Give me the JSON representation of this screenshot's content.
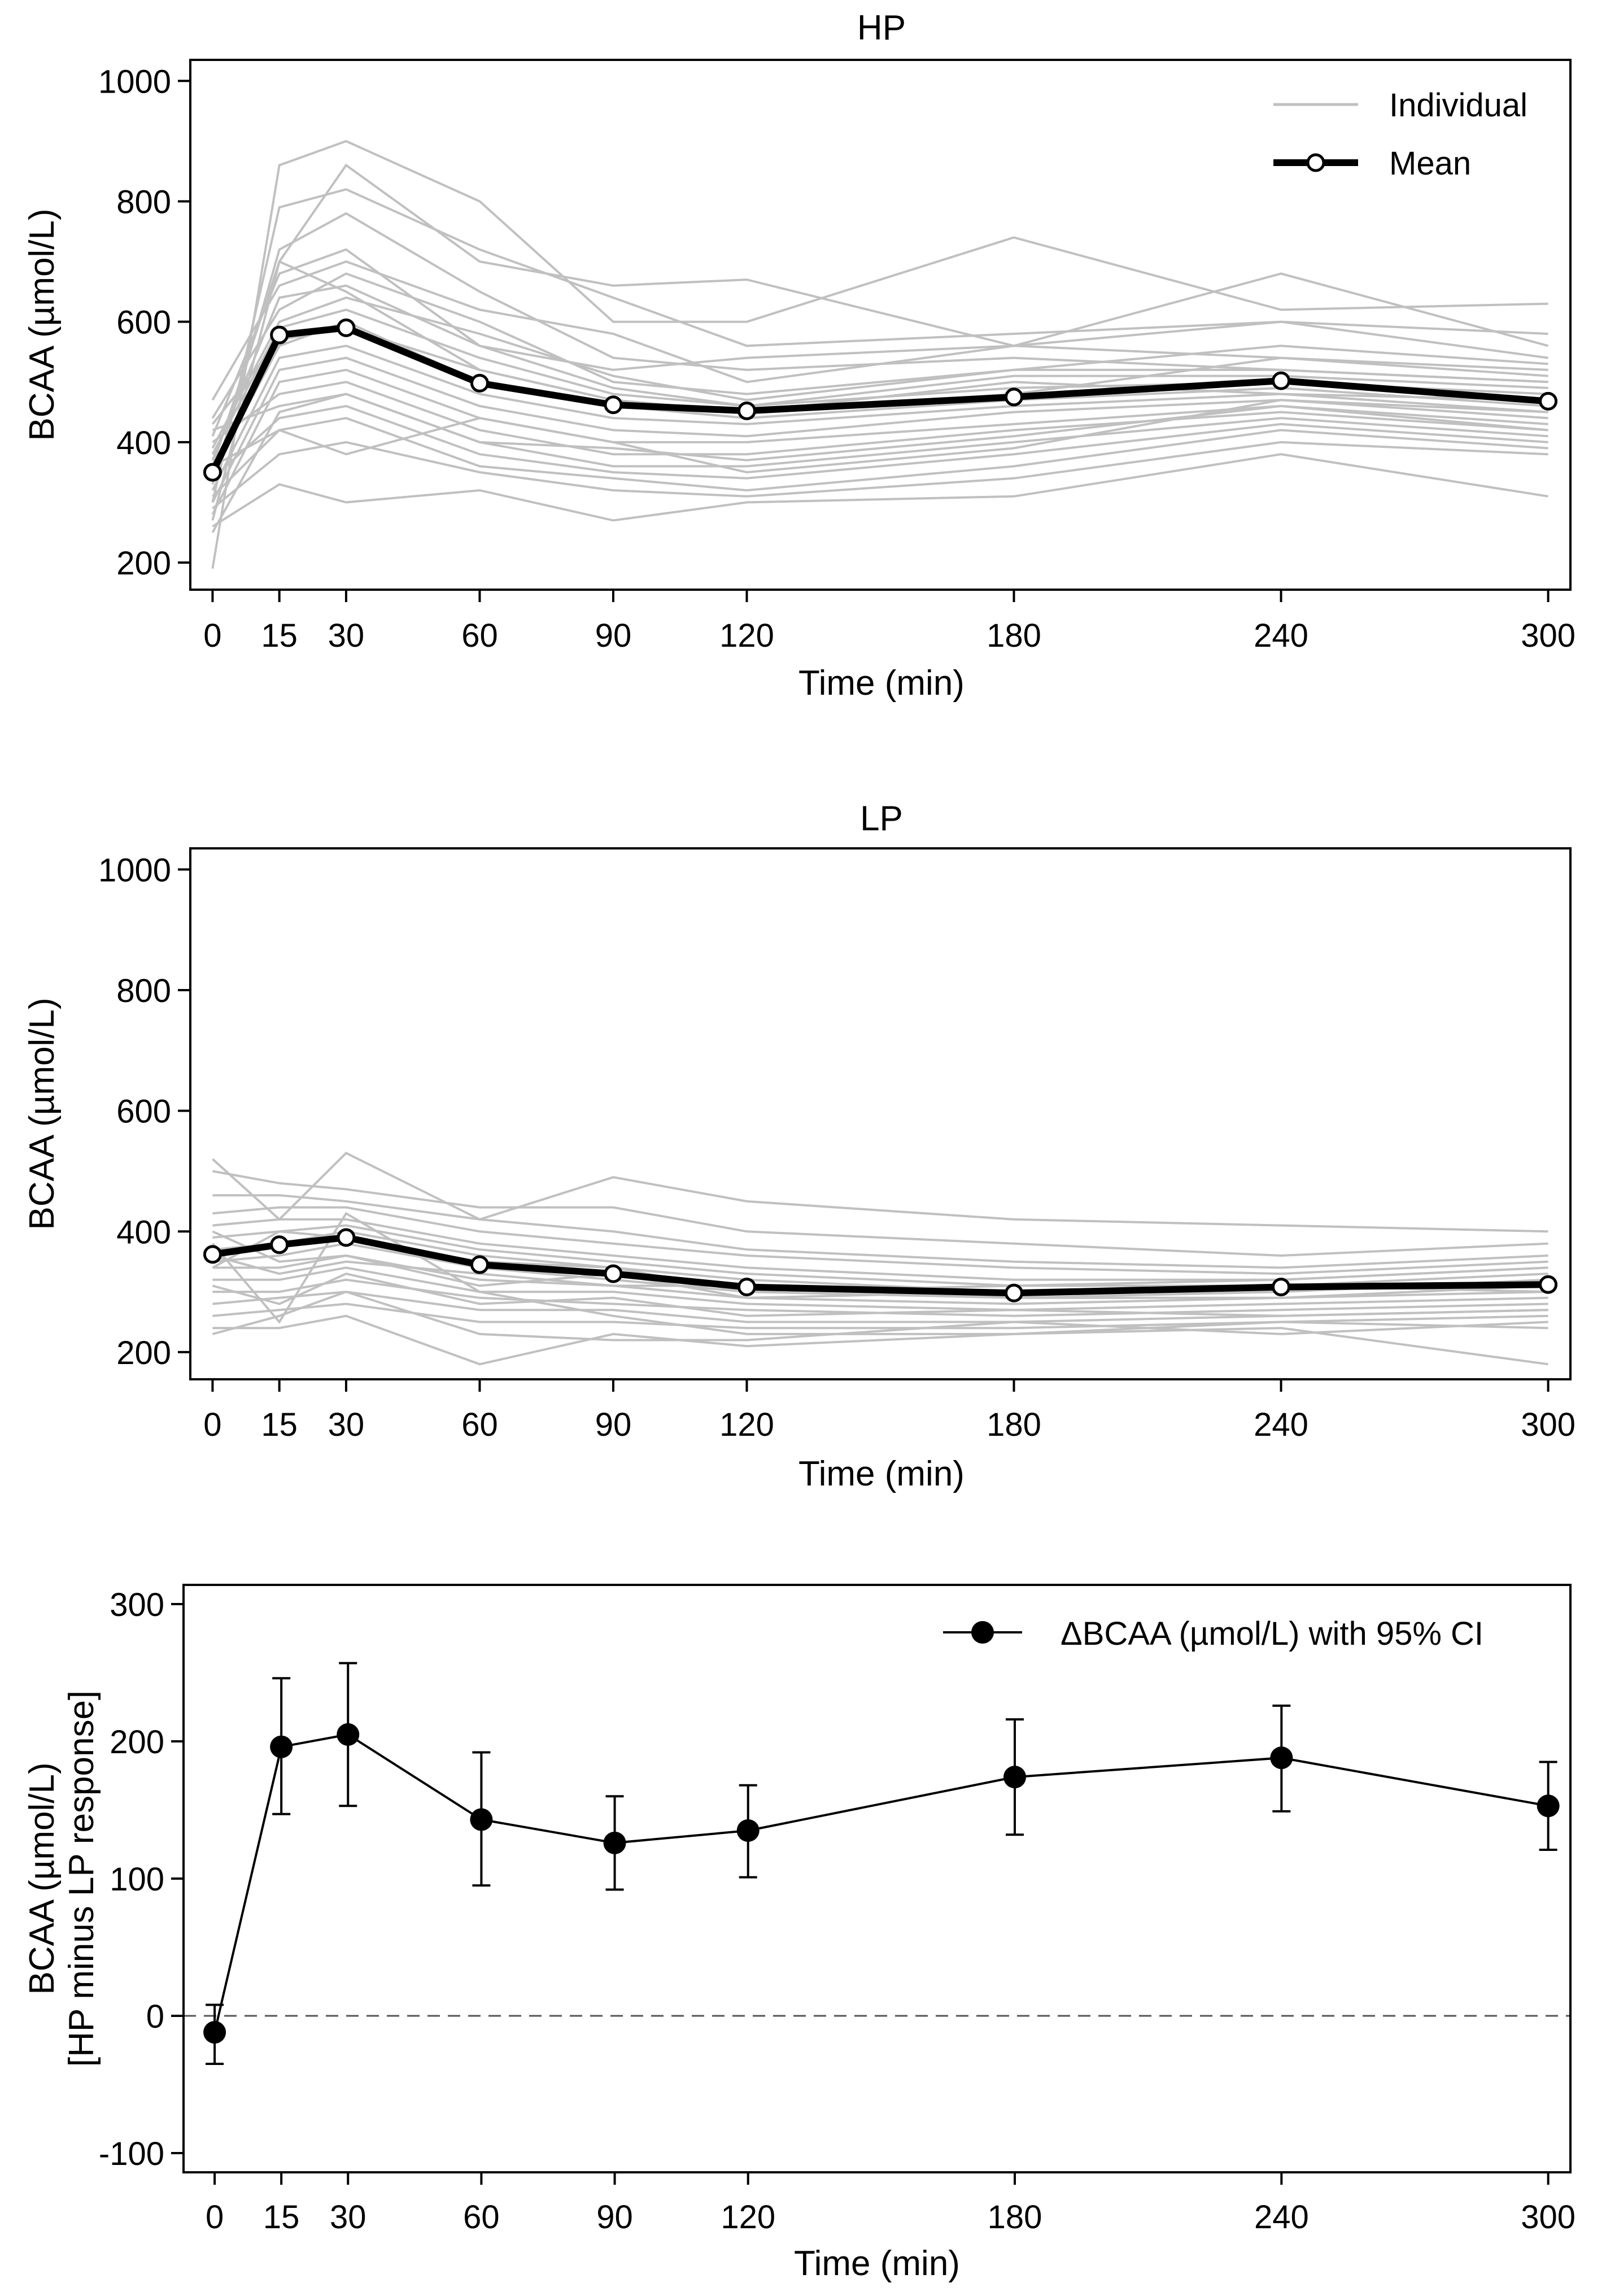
{
  "chart_data": [
    {
      "id": "hp",
      "type": "line",
      "title": "HP",
      "xlabel": "Time (min)",
      "ylabel": "BCAA (µmol/L)",
      "x": [
        0,
        15,
        30,
        60,
        90,
        120,
        180,
        240,
        300
      ],
      "x_ticks": [
        "0",
        "15",
        "30",
        "60",
        "90",
        "120",
        "180",
        "240",
        "300"
      ],
      "y_ticks": [
        "200",
        "400",
        "600",
        "800",
        "1000"
      ],
      "y_tick_values": [
        200,
        400,
        600,
        800,
        1000
      ],
      "xlim": [
        -5,
        305
      ],
      "ylim": [
        155,
        1035
      ],
      "legend": {
        "position": "top-right",
        "individual_label": "Individual",
        "mean_label": "Mean"
      },
      "colors": {
        "individual": "#c0c0c0",
        "mean": "#000000"
      },
      "mean": [
        350,
        578,
        590,
        498,
        462,
        452,
        475,
        502,
        468
      ],
      "individual": [
        [
          190,
          860,
          900,
          800,
          600,
          600,
          740,
          620,
          630
        ],
        [
          270,
          700,
          860,
          700,
          660,
          670,
          560,
          680,
          560
        ],
        [
          300,
          790,
          820,
          720,
          640,
          560,
          580,
          600,
          540
        ],
        [
          330,
          720,
          780,
          650,
          540,
          520,
          540,
          520,
          500
        ],
        [
          410,
          680,
          720,
          560,
          520,
          540,
          560,
          540,
          520
        ],
        [
          440,
          620,
          680,
          600,
          500,
          480,
          520,
          520,
          500
        ],
        [
          360,
          700,
          650,
          520,
          470,
          450,
          500,
          480,
          470
        ],
        [
          380,
          590,
          620,
          540,
          480,
          460,
          490,
          500,
          480
        ],
        [
          350,
          560,
          600,
          500,
          460,
          440,
          470,
          490,
          460
        ],
        [
          320,
          540,
          560,
          480,
          440,
          430,
          460,
          480,
          450
        ],
        [
          300,
          520,
          540,
          460,
          420,
          410,
          450,
          470,
          440
        ],
        [
          280,
          500,
          520,
          440,
          400,
          400,
          430,
          460,
          430
        ],
        [
          400,
          480,
          500,
          420,
          380,
          380,
          420,
          450,
          420
        ],
        [
          420,
          460,
          480,
          400,
          360,
          360,
          400,
          440,
          410
        ],
        [
          340,
          440,
          460,
          380,
          350,
          340,
          380,
          430,
          400
        ],
        [
          310,
          420,
          440,
          360,
          340,
          320,
          360,
          420,
          390
        ],
        [
          290,
          380,
          400,
          350,
          320,
          310,
          340,
          400,
          380
        ],
        [
          260,
          330,
          300,
          320,
          270,
          300,
          310,
          380,
          310
        ],
        [
          470,
          660,
          700,
          620,
          580,
          500,
          560,
          600,
          580
        ],
        [
          390,
          600,
          640,
          580,
          510,
          470,
          520,
          560,
          530
        ],
        [
          370,
          640,
          660,
          560,
          490,
          460,
          510,
          510,
          490
        ],
        [
          430,
          570,
          590,
          520,
          470,
          450,
          480,
          540,
          510
        ],
        [
          250,
          450,
          480,
          400,
          390,
          370,
          410,
          460,
          420
        ],
        [
          360,
          420,
          380,
          440,
          400,
          350,
          390,
          470,
          450
        ]
      ]
    },
    {
      "id": "lp",
      "type": "line",
      "title": "LP",
      "xlabel": "Time (min)",
      "ylabel": "BCAA (µmol/L)",
      "x": [
        0,
        15,
        30,
        60,
        90,
        120,
        180,
        240,
        300
      ],
      "x_ticks": [
        "0",
        "15",
        "30",
        "60",
        "90",
        "120",
        "180",
        "240",
        "300"
      ],
      "y_ticks": [
        "200",
        "400",
        "600",
        "800",
        "1000"
      ],
      "y_tick_values": [
        200,
        400,
        600,
        800,
        1000
      ],
      "xlim": [
        -5,
        305
      ],
      "ylim": [
        155,
        1035
      ],
      "colors": {
        "individual": "#c0c0c0",
        "mean": "#000000"
      },
      "mean": [
        362,
        378,
        390,
        345,
        330,
        308,
        298,
        308,
        312
      ],
      "individual": [
        [
          520,
          420,
          530,
          420,
          490,
          450,
          420,
          410,
          400
        ],
        [
          500,
          480,
          470,
          440,
          440,
          400,
          380,
          360,
          380
        ],
        [
          460,
          460,
          450,
          420,
          400,
          370,
          350,
          340,
          360
        ],
        [
          430,
          440,
          440,
          400,
          380,
          360,
          340,
          330,
          350
        ],
        [
          410,
          420,
          420,
          380,
          360,
          340,
          320,
          320,
          340
        ],
        [
          390,
          400,
          410,
          370,
          350,
          330,
          310,
          310,
          330
        ],
        [
          370,
          380,
          400,
          360,
          340,
          320,
          300,
          300,
          320
        ],
        [
          350,
          360,
          380,
          340,
          320,
          300,
          290,
          290,
          310
        ],
        [
          340,
          340,
          360,
          320,
          310,
          290,
          280,
          290,
          300
        ],
        [
          320,
          320,
          340,
          300,
          300,
          280,
          270,
          280,
          290
        ],
        [
          300,
          300,
          320,
          290,
          280,
          270,
          260,
          270,
          280
        ],
        [
          280,
          290,
          300,
          270,
          270,
          250,
          250,
          260,
          270
        ],
        [
          260,
          270,
          280,
          250,
          250,
          240,
          240,
          250,
          260
        ],
        [
          240,
          240,
          260,
          180,
          230,
          210,
          230,
          240,
          180
        ],
        [
          230,
          260,
          300,
          230,
          220,
          220,
          250,
          230,
          250
        ],
        [
          380,
          250,
          430,
          300,
          260,
          230,
          230,
          250,
          240
        ],
        [
          400,
          350,
          360,
          310,
          330,
          290,
          300,
          310,
          300
        ],
        [
          360,
          330,
          350,
          330,
          310,
          310,
          290,
          300,
          320
        ],
        [
          340,
          400,
          390,
          350,
          340,
          300,
          310,
          320,
          340
        ],
        [
          310,
          280,
          330,
          280,
          290,
          260,
          270,
          260,
          270
        ]
      ]
    },
    {
      "id": "diff",
      "type": "line",
      "xlabel": "Time (min)",
      "ylabel": "BCAA (µmol/L)",
      "ylabel2": "[HP minus LP response]",
      "x": [
        0,
        15,
        30,
        60,
        90,
        120,
        180,
        240,
        300
      ],
      "x_ticks": [
        "0",
        "15",
        "30",
        "60",
        "90",
        "120",
        "180",
        "240",
        "300"
      ],
      "y_ticks": [
        "-100",
        "0",
        "100",
        "200",
        "300"
      ],
      "y_tick_values": [
        -100,
        0,
        100,
        200,
        300
      ],
      "xlim": [
        -7,
        305
      ],
      "ylim": [
        -114,
        314
      ],
      "reference_line": 0,
      "legend": {
        "position": "top-right",
        "label": "ΔBCAA (µmol/L) with 95% CI"
      },
      "series": [
        {
          "name": "ΔBCAA (µmol/L) with 95% CI",
          "values": [
            -12,
            196,
            205,
            143,
            126,
            135,
            174,
            188,
            153
          ],
          "ci_low": [
            -35,
            147,
            153,
            95,
            92,
            101,
            132,
            149,
            121
          ],
          "ci_high": [
            8,
            246,
            257,
            192,
            160,
            168,
            216,
            226,
            185
          ]
        }
      ]
    }
  ]
}
